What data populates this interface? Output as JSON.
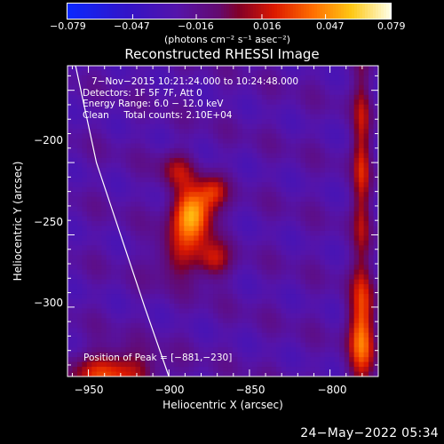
{
  "chart_data": {
    "type": "heatmap",
    "title": "Reconstructed RHESSI Image",
    "xlabel": "Heliocentric X (arcsec)",
    "ylabel": "Heliocentric Y (arcsec)",
    "xlim": [
      -963,
      -770
    ],
    "ylim": [
      -348,
      -133
    ],
    "x_ticks": [
      -950,
      -900,
      -850,
      -800
    ],
    "x_tick_labels": [
      "−950",
      "−900",
      "−850",
      "−800"
    ],
    "y_ticks": [
      -200,
      -250,
      -300
    ],
    "y_tick_labels": [
      "−200",
      "−250",
      "−300"
    ],
    "colorbar": {
      "range": [
        -0.079,
        0.079
      ],
      "ticks": [
        -0.079,
        -0.047,
        -0.016,
        0.016,
        0.047,
        0.079
      ],
      "tick_labels": [
        "−0.079",
        "−0.047",
        "−0.016",
        "0.016",
        "0.047",
        "0.079"
      ],
      "unit_text": "(photons cm⁻² s⁻¹ asec⁻²)"
    },
    "annotations": [
      "7−Nov−2015 10:21:24.000 to 10:24:48.000",
      "Detectors: 1F 5F 7F, Att 0",
      "Energy Range: 6.0 − 12.0 keV",
      "Clean     Total counts: 2.10E+04"
    ],
    "peak_label": "Position of Peak = [−881,−230]",
    "peak": [
      -881,
      -230
    ],
    "sources": [
      {
        "x": -885,
        "y": -235,
        "sx": 9,
        "sy": 13,
        "amp": 0.083
      },
      {
        "x": -895,
        "y": -205,
        "sx": 8,
        "sy": 9,
        "amp": 0.03
      },
      {
        "x": -893,
        "y": -265,
        "sx": 11,
        "sy": 12,
        "amp": 0.035
      },
      {
        "x": -872,
        "y": -268,
        "sx": 7,
        "sy": 9,
        "amp": 0.038
      },
      {
        "x": -872,
        "y": -220,
        "sx": 6,
        "sy": 8,
        "amp": 0.033
      },
      {
        "x": -780,
        "y": -200,
        "sx": 4,
        "sy": 55,
        "amp": 0.042
      },
      {
        "x": -780,
        "y": -320,
        "sx": 6,
        "sy": 28,
        "amp": 0.06
      },
      {
        "x": -935,
        "y": -345,
        "sx": 18,
        "sy": 10,
        "amp": 0.055
      }
    ],
    "background_level": -0.024,
    "limb": [
      [
        -958,
        -133
      ],
      [
        -945,
        -200
      ],
      [
        -930,
        -250
      ],
      [
        -915,
        -300
      ],
      [
        -900,
        -348
      ]
    ]
  },
  "footer": {
    "timestamp": "24−May−2022 05:34"
  }
}
